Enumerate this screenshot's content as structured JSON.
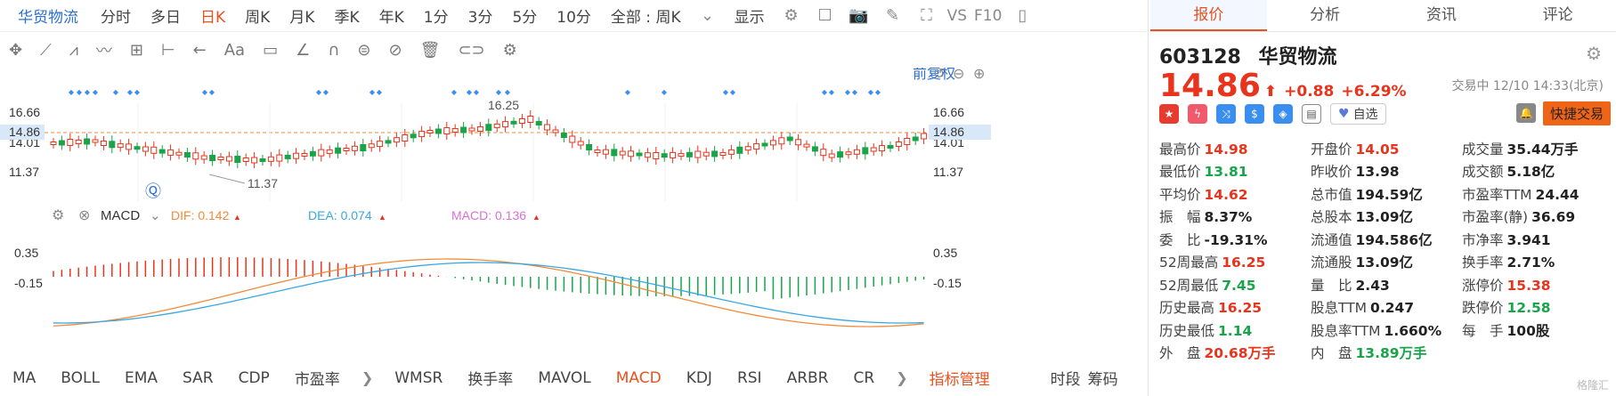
{
  "topbar": {
    "stock_name": "华贸物流",
    "periods": [
      "分时",
      "多日",
      "日K",
      "周K",
      "月K",
      "季K",
      "年K",
      "1分",
      "3分",
      "5分",
      "10分"
    ],
    "active_period": "日K",
    "scope": "全部 : 周K",
    "display": "显示",
    "vs": "VS",
    "f10": "F10"
  },
  "chart": {
    "fuquan": "前复权",
    "price_levels": [
      "16.66",
      "14.86",
      "14.01",
      "11.37"
    ],
    "current_price_label": "14.86",
    "high_label": "16.25",
    "low_label": "11.37",
    "macd_title": "MACD",
    "dif_label": "DIF: 0.142",
    "dea_label": "DEA: 0.074",
    "macd_label": "MACD: 0.136",
    "macd_levels": [
      "0.35",
      "-0.15"
    ]
  },
  "bottombar": {
    "indicators": [
      "MA",
      "BOLL",
      "EMA",
      "SAR",
      "CDP",
      "市盈率"
    ],
    "indicators2": [
      "WMSR",
      "换手率",
      "MAVOL",
      "MACD",
      "KDJ",
      "RSI",
      "ARBR",
      "CR"
    ],
    "active": "MACD",
    "manager": "指标管理",
    "right_items": [
      "时段",
      "筹码"
    ]
  },
  "panel": {
    "tabs": [
      "报价",
      "分析",
      "资讯",
      "评论"
    ],
    "active_tab": "报价",
    "code": "603128",
    "name": "华贸物流",
    "price": "14.86",
    "change": "+0.88",
    "change_pct": "+6.29%",
    "trade_time": "交易中 12/10 14:33(北京)",
    "zixuan": "自选",
    "fast_trade": "快捷交易",
    "stats": [
      [
        {
          "k": "最高价",
          "v": "14.98",
          "c": "red"
        },
        {
          "k": "开盘价",
          "v": "14.05",
          "c": "red"
        },
        {
          "k": "成交量",
          "v": "35.44万手",
          "c": "dark"
        }
      ],
      [
        {
          "k": "最低价",
          "v": "13.81",
          "c": "green"
        },
        {
          "k": "昨收价",
          "v": "13.98",
          "c": "dark"
        },
        {
          "k": "成交额",
          "v": "5.18亿",
          "c": "dark"
        }
      ],
      [
        {
          "k": "平均价",
          "v": "14.62",
          "c": "red"
        },
        {
          "k": "总市值",
          "v": "194.59亿",
          "c": "dark"
        },
        {
          "k": "市盈率TTM",
          "v": "24.44",
          "c": "dark"
        }
      ],
      [
        {
          "k": "振　幅",
          "v": "8.37%",
          "c": "dark"
        },
        {
          "k": "总股本",
          "v": "13.09亿",
          "c": "dark"
        },
        {
          "k": "市盈率(静)",
          "v": "36.69",
          "c": "dark"
        }
      ],
      [
        {
          "k": "委　比",
          "v": "-19.31%",
          "c": "dark"
        },
        {
          "k": "流通值",
          "v": "194.586亿",
          "c": "dark"
        },
        {
          "k": "市净率",
          "v": "3.941",
          "c": "dark"
        }
      ],
      [
        {
          "k": "52周最高",
          "v": "16.25",
          "c": "red"
        },
        {
          "k": "流通股",
          "v": "13.09亿",
          "c": "dark"
        },
        {
          "k": "换手率",
          "v": "2.71%",
          "c": "dark"
        }
      ],
      [
        {
          "k": "52周最低",
          "v": "7.45",
          "c": "green"
        },
        {
          "k": "量　比",
          "v": "2.43",
          "c": "dark"
        },
        {
          "k": "涨停价",
          "v": "15.38",
          "c": "red"
        }
      ],
      [
        {
          "k": "历史最高",
          "v": "16.25",
          "c": "red"
        },
        {
          "k": "股息TTM",
          "v": "0.247",
          "c": "dark"
        },
        {
          "k": "跌停价",
          "v": "12.58",
          "c": "green"
        }
      ],
      [
        {
          "k": "历史最低",
          "v": "1.14",
          "c": "green"
        },
        {
          "k": "股息率TTM",
          "v": "1.660%",
          "c": "dark"
        },
        {
          "k": "每　手",
          "v": "100股",
          "c": "dark"
        }
      ],
      [
        {
          "k": "外　盘",
          "v": "20.68万手",
          "c": "red"
        },
        {
          "k": "内　盘",
          "v": "13.89万手",
          "c": "green"
        },
        {
          "k": "",
          "v": "",
          "c": "dark"
        }
      ]
    ],
    "watermark": "格隆汇"
  },
  "colors": {
    "up": "#e8341c",
    "down": "#19a44a",
    "accent": "#e8521f",
    "link": "#2b6fd6"
  }
}
